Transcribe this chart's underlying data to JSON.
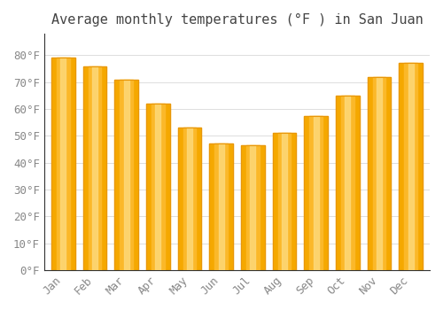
{
  "title": "Average monthly temperatures (°F ) in San Juan",
  "months": [
    "Jan",
    "Feb",
    "Mar",
    "Apr",
    "May",
    "Jun",
    "Jul",
    "Aug",
    "Sep",
    "Oct",
    "Nov",
    "Dec"
  ],
  "values": [
    79,
    76,
    71,
    62,
    53,
    47,
    46.5,
    51,
    57.5,
    65,
    72,
    77
  ],
  "bar_color_main": "#FBB829",
  "bar_color_light": "#FDD878",
  "bar_color_dark": "#F5A800",
  "bar_edge_color": "#E8960A",
  "background_color": "#FFFFFF",
  "grid_color": "#DDDDDD",
  "text_color": "#888888",
  "spine_color": "#333333",
  "yticks": [
    0,
    10,
    20,
    30,
    40,
    50,
    60,
    70,
    80
  ],
  "ylim": [
    0,
    88
  ],
  "title_fontsize": 11,
  "tick_fontsize": 9,
  "bar_width": 0.75
}
